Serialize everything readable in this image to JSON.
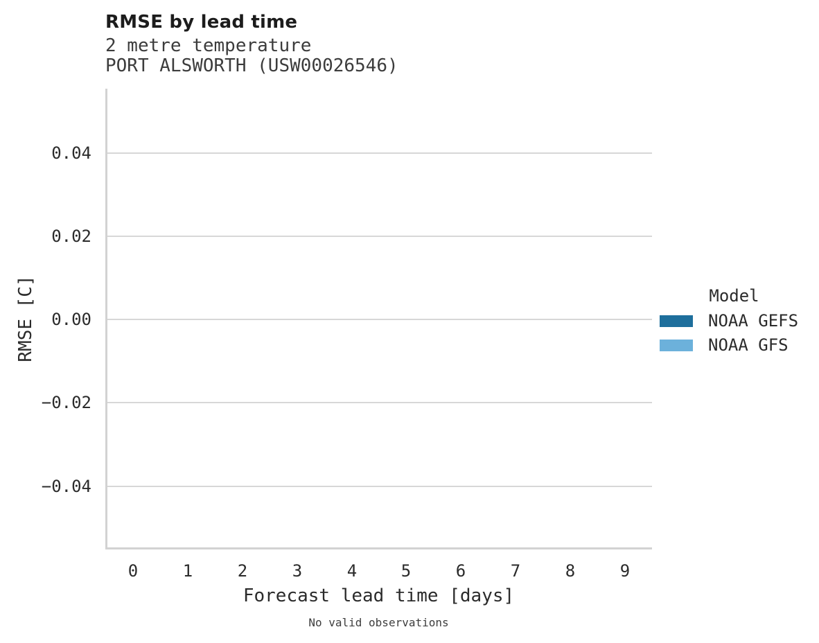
{
  "chart_data": {
    "type": "bar",
    "title": "RMSE by lead time",
    "subtitle_line1": "2 metre temperature",
    "subtitle_line2": "PORT ALSWORTH (USW00026546)",
    "xlabel": "Forecast lead time [days]",
    "ylabel": "RMSE [C]",
    "caption": "No valid observations",
    "x_tick_labels": [
      "0",
      "1",
      "2",
      "3",
      "4",
      "5",
      "6",
      "7",
      "8",
      "9"
    ],
    "y_tick_labels": [
      "0.04",
      "0.02",
      "0.00",
      "−0.02",
      "−0.04"
    ],
    "y_tick_values": [
      0.04,
      0.02,
      0.0,
      -0.02,
      -0.04
    ],
    "ylim": [
      -0.055,
      0.055
    ],
    "grid": "horizontal-only",
    "legend_position": "right",
    "legend": {
      "title": "Model",
      "entries": [
        {
          "label": "NOAA GEFS",
          "color": "#1e6f9c"
        },
        {
          "label": "NOAA GFS",
          "color": "#6cb1db"
        }
      ]
    },
    "series": [
      {
        "name": "NOAA GEFS",
        "color": "#1e6f9c",
        "values": []
      },
      {
        "name": "NOAA GFS",
        "color": "#6cb1db",
        "values": []
      }
    ]
  },
  "colors": {
    "axis_line": "#d2d2d2",
    "gridline": "#d7d7d7",
    "title_text": "#1c1c1c",
    "subtitle_text": "#3c3c3c",
    "tick_text": "#2b2b2b"
  }
}
